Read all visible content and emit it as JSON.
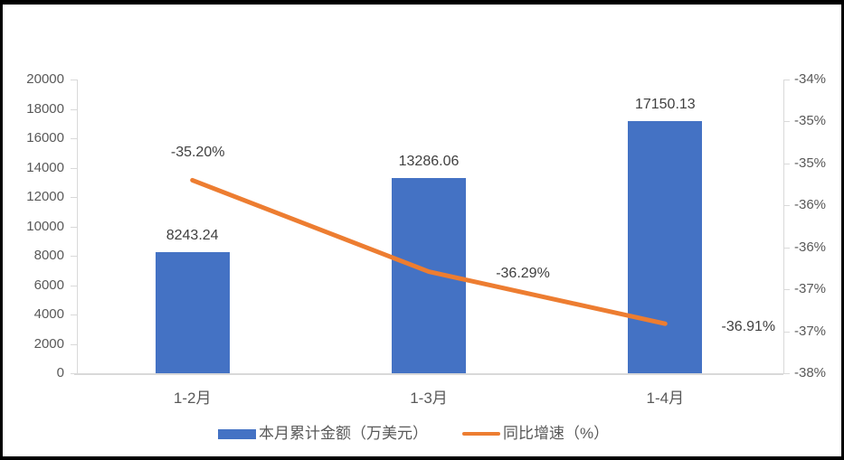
{
  "chart_data": {
    "type": "bar+line combo",
    "title": "",
    "categories": [
      "1-2月",
      "1-3月",
      "1-4月"
    ],
    "series": [
      {
        "name": "本月累计金额（万美元）",
        "type": "bar",
        "color": "#4472C4",
        "values": [
          8243.24,
          13286.06,
          17150.13
        ],
        "data_labels": [
          "8243.24",
          "13286.06",
          "17150.13"
        ]
      },
      {
        "name": "同比增速（%）",
        "type": "line",
        "color": "#ED7D31",
        "values": [
          -35.2,
          -36.29,
          -36.91
        ],
        "data_labels": [
          "-35.20%",
          "-36.29%",
          "-36.91%"
        ],
        "label_offsets": [
          [
            6,
            -30
          ],
          [
            104,
            2
          ],
          [
            92,
            4
          ]
        ]
      }
    ],
    "left_axis": {
      "min": 0,
      "max": 20000,
      "step": 2000,
      "ticks": [
        "0",
        "2000",
        "4000",
        "6000",
        "8000",
        "10000",
        "12000",
        "14000",
        "16000",
        "18000",
        "20000"
      ]
    },
    "right_axis": {
      "top_value": -34,
      "bottom_value": -37.5,
      "ticks": [
        "-34%",
        "-35%",
        "-35%",
        "-36%",
        "-36%",
        "-37%",
        "-37%",
        "-38%"
      ]
    },
    "legend": [
      {
        "label": "本月累计金额（万美元）",
        "swatch": "bar",
        "color": "#4472C4"
      },
      {
        "label": "同比增速（%）",
        "swatch": "line",
        "color": "#ED7D31"
      }
    ],
    "grid": false,
    "legend_position": "bottom",
    "colors": {
      "axis_line": "#d9d9d9",
      "axis_text": "#595959",
      "data_label_text": "#404040",
      "frame_border": "#000000",
      "background": "#ffffff"
    }
  }
}
